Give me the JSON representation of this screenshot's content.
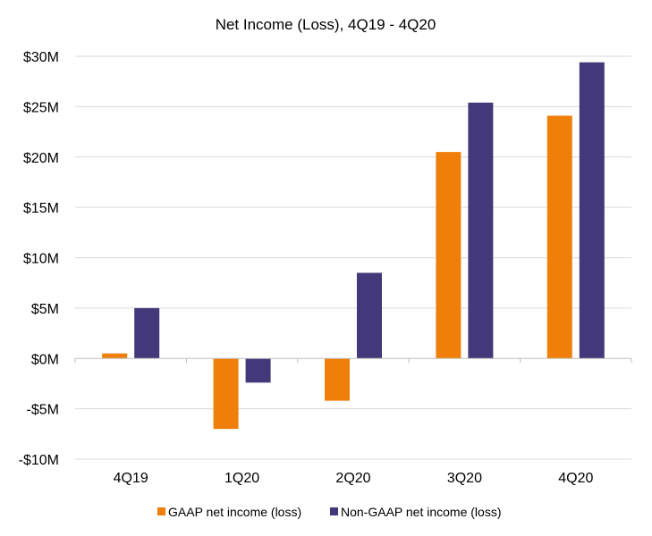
{
  "chart_data": {
    "type": "bar",
    "title": "Net Income (Loss), 4Q19 - 4Q20",
    "xlabel": "",
    "ylabel": "",
    "categories": [
      "4Q19",
      "1Q20",
      "2Q20",
      "3Q20",
      "4Q20"
    ],
    "series": [
      {
        "name": "GAAP net income (loss)",
        "values": [
          0.5,
          -7.0,
          -4.2,
          20.5,
          24.1
        ],
        "color": "#f07f09"
      },
      {
        "name": "Non-GAAP net income (loss)",
        "values": [
          5.0,
          -2.4,
          8.5,
          25.4,
          29.4
        ],
        "color": "#433879"
      }
    ],
    "ylim": [
      -10,
      30
    ],
    "yticks": [
      30,
      25,
      20,
      15,
      10,
      5,
      0,
      -5,
      -10
    ],
    "ytick_labels": [
      "$30M",
      "$25M",
      "$20M",
      "$15M",
      "$10M",
      "$5M",
      "$0M",
      "-$5M",
      "-$10M"
    ],
    "grid": true,
    "legend_position": "bottom"
  }
}
